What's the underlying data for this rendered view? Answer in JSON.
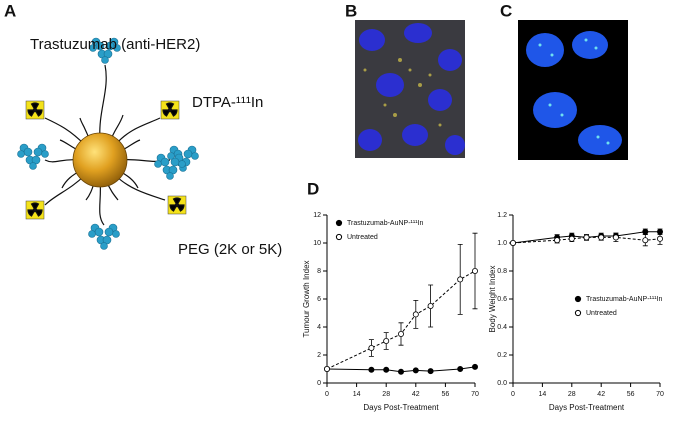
{
  "panels": [
    "A",
    "B",
    "C",
    "D"
  ],
  "diagram": {
    "antibody_label": "Trastuzumab (anti-HER2)",
    "chelator_label": "DTPA-¹¹¹In",
    "peg_label": "PEG (2K or 5K)"
  },
  "chart_data": [
    {
      "type": "line",
      "y_label": "Tumour Growth Index",
      "x_label": "Days Post-Treatment",
      "xlim": [
        0,
        70
      ],
      "xticks": [
        0,
        14,
        28,
        42,
        56,
        70
      ],
      "ylim": [
        0,
        12
      ],
      "yticks": [
        0,
        2,
        4,
        6,
        8,
        10,
        12
      ],
      "legend": "upper left",
      "series": [
        {
          "name": "Trastuzumab-AuNP-¹¹¹In",
          "color": "#000",
          "marker": "filled",
          "linestyle": "solid",
          "x": [
            0,
            21,
            28,
            35,
            42,
            49,
            63,
            70
          ],
          "values": [
            1.0,
            0.95,
            0.95,
            0.8,
            0.9,
            0.85,
            1.0,
            1.15
          ],
          "errors": [
            0,
            0.05,
            0.05,
            0.05,
            0.05,
            0.05,
            0.05,
            0.1
          ]
        },
        {
          "name": "Untreated",
          "color": "#000",
          "marker": "open",
          "linestyle": "dashed",
          "x": [
            0,
            21,
            28,
            35,
            42,
            49,
            63,
            70
          ],
          "values": [
            1.0,
            2.5,
            3.0,
            3.5,
            4.9,
            5.5,
            7.4,
            8.0
          ],
          "errors": [
            0,
            0.6,
            0.6,
            0.8,
            1.0,
            1.5,
            2.5,
            2.7
          ]
        }
      ]
    },
    {
      "type": "line",
      "y_label": "Body Weight Index",
      "x_label": "Days Post-Treatment",
      "xlim": [
        0,
        70
      ],
      "xticks": [
        0,
        14,
        28,
        42,
        56,
        70
      ],
      "ylim": [
        0,
        1.2
      ],
      "yticks": [
        {
          "value": 0,
          "label": "0.0"
        },
        0.2,
        0.4,
        0.6,
        0.8,
        {
          "value": 1,
          "label": "1.0"
        },
        1.2
      ],
      "legend": "center right",
      "series": [
        {
          "name": "Trastuzumab-AuNP-¹¹¹In",
          "color": "#000",
          "marker": "filled",
          "linestyle": "solid",
          "x": [
            0,
            21,
            28,
            35,
            42,
            49,
            63,
            70
          ],
          "values": [
            1.0,
            1.04,
            1.05,
            1.04,
            1.05,
            1.05,
            1.08,
            1.08
          ],
          "errors": [
            0,
            0.02,
            0.02,
            0.02,
            0.02,
            0.02,
            0.02,
            0.02
          ]
        },
        {
          "name": "Untreated",
          "color": "#000",
          "marker": "open",
          "linestyle": "dashed",
          "x": [
            0,
            21,
            28,
            35,
            42,
            49,
            63,
            70
          ],
          "values": [
            1.0,
            1.02,
            1.03,
            1.04,
            1.04,
            1.04,
            1.02,
            1.03
          ],
          "errors": [
            0,
            0.02,
            0.02,
            0.02,
            0.02,
            0.03,
            0.04,
            0.04
          ]
        }
      ]
    }
  ]
}
